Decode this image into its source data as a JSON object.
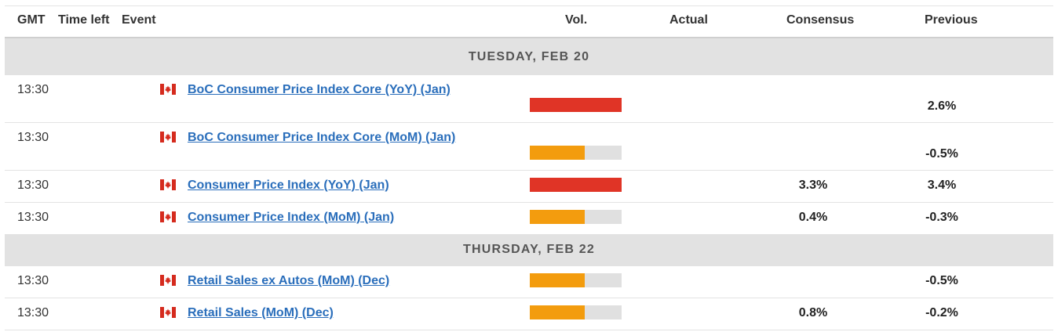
{
  "columns": {
    "gmt": "GMT",
    "time_left": "Time left",
    "event": "Event",
    "vol": "Vol.",
    "actual": "Actual",
    "consensus": "Consensus",
    "previous": "Previous"
  },
  "colors": {
    "high_volatility": "#e03426",
    "medium_volatility": "#f39c0e",
    "link": "#2a6ebb",
    "day_band": "#e2e2e2"
  },
  "days": [
    {
      "label": "TUESDAY, FEB 20",
      "events": [
        {
          "time": "13:30",
          "flag_icon": "canada-flag-icon",
          "name": "BoC Consumer Price Index Core (YoY) (Jan)",
          "volatility": "high",
          "volatility_level": 1.0,
          "actual": "",
          "consensus": "",
          "previous": "2.6%"
        },
        {
          "time": "13:30",
          "flag_icon": "canada-flag-icon",
          "name": "BoC Consumer Price Index Core (MoM) (Jan)",
          "volatility": "medium",
          "volatility_level": 0.6,
          "actual": "",
          "consensus": "",
          "previous": "-0.5%"
        },
        {
          "time": "13:30",
          "flag_icon": "canada-flag-icon",
          "name": "Consumer Price Index (YoY) (Jan)",
          "volatility": "high",
          "volatility_level": 1.0,
          "actual": "",
          "consensus": "3.3%",
          "previous": "3.4%"
        },
        {
          "time": "13:30",
          "flag_icon": "canada-flag-icon",
          "name": "Consumer Price Index (MoM) (Jan)",
          "volatility": "medium",
          "volatility_level": 0.6,
          "actual": "",
          "consensus": "0.4%",
          "previous": "-0.3%"
        }
      ]
    },
    {
      "label": "THURSDAY, FEB 22",
      "events": [
        {
          "time": "13:30",
          "flag_icon": "canada-flag-icon",
          "name": "Retail Sales ex Autos (MoM) (Dec)",
          "volatility": "medium",
          "volatility_level": 0.6,
          "actual": "",
          "consensus": "",
          "previous": "-0.5%"
        },
        {
          "time": "13:30",
          "flag_icon": "canada-flag-icon",
          "name": "Retail Sales (MoM) (Dec)",
          "volatility": "medium",
          "volatility_level": 0.6,
          "actual": "",
          "consensus": "0.8%",
          "previous": "-0.2%"
        }
      ]
    }
  ]
}
